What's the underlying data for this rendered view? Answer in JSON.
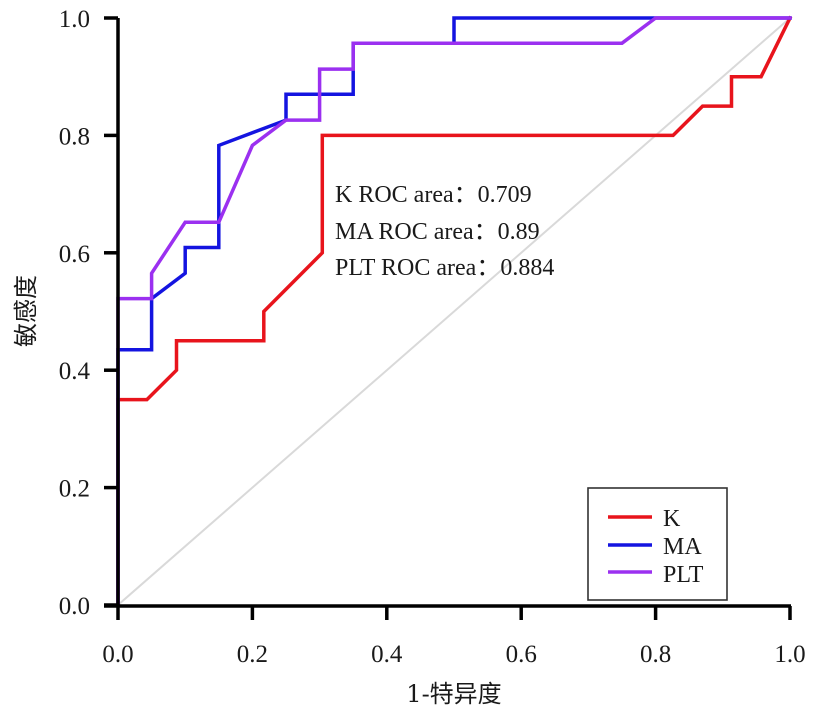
{
  "chart_data": {
    "type": "line",
    "title": "",
    "xlabel": "1-特异度",
    "ylabel": "敏感度",
    "xlim": [
      0,
      1
    ],
    "ylim": [
      0,
      1
    ],
    "xticks": [
      0.0,
      0.2,
      0.4,
      0.6,
      0.8,
      1.0
    ],
    "yticks": [
      0.0,
      0.2,
      0.4,
      0.6,
      0.8,
      1.0
    ],
    "xtick_labels": [
      "0.0",
      "0.2",
      "0.4",
      "0.6",
      "0.8",
      "1.0"
    ],
    "ytick_labels": [
      "0.0",
      "0.2",
      "0.4",
      "0.6",
      "0.8",
      "1.0"
    ],
    "grid": false,
    "legend_position": "bottom-right",
    "reference_line": {
      "name": "chance",
      "x": [
        0,
        1
      ],
      "y": [
        0,
        1
      ],
      "color": "#d9d9d9"
    },
    "series": [
      {
        "name": "K",
        "color": "#e8141c",
        "x": [
          0,
          0,
          0.043,
          0.087,
          0.087,
          0.217,
          0.217,
          0.304,
          0.304,
          0.826,
          0.87,
          0.913,
          0.913,
          0.957,
          1.0
        ],
        "y": [
          0,
          0.35,
          0.35,
          0.4,
          0.45,
          0.45,
          0.5,
          0.6,
          0.8,
          0.8,
          0.85,
          0.85,
          0.9,
          0.9,
          1.0
        ]
      },
      {
        "name": "MA",
        "color": "#1414e0",
        "x": [
          0,
          0,
          0.05,
          0.05,
          0.1,
          0.1,
          0.15,
          0.15,
          0.25,
          0.25,
          0.35,
          0.35,
          0.5,
          0.5,
          1.0
        ],
        "y": [
          0,
          0.435,
          0.435,
          0.522,
          0.565,
          0.609,
          0.609,
          0.783,
          0.826,
          0.87,
          0.87,
          0.957,
          0.957,
          1.0,
          1.0
        ]
      },
      {
        "name": "PLT",
        "color": "#9b30f0",
        "x": [
          0,
          0,
          0.05,
          0.05,
          0.1,
          0.15,
          0.2,
          0.25,
          0.3,
          0.3,
          0.35,
          0.35,
          0.75,
          0.8,
          1.0
        ],
        "y": [
          0,
          0.522,
          0.522,
          0.565,
          0.652,
          0.652,
          0.783,
          0.826,
          0.826,
          0.913,
          0.913,
          0.957,
          0.957,
          1.0,
          1.0
        ]
      }
    ],
    "annotations": [
      "K ROC area：0.709",
      "MA ROC area：0.89",
      "PLT ROC area：0.884"
    ],
    "auc": {
      "K": 0.709,
      "MA": 0.89,
      "PLT": 0.884
    }
  }
}
